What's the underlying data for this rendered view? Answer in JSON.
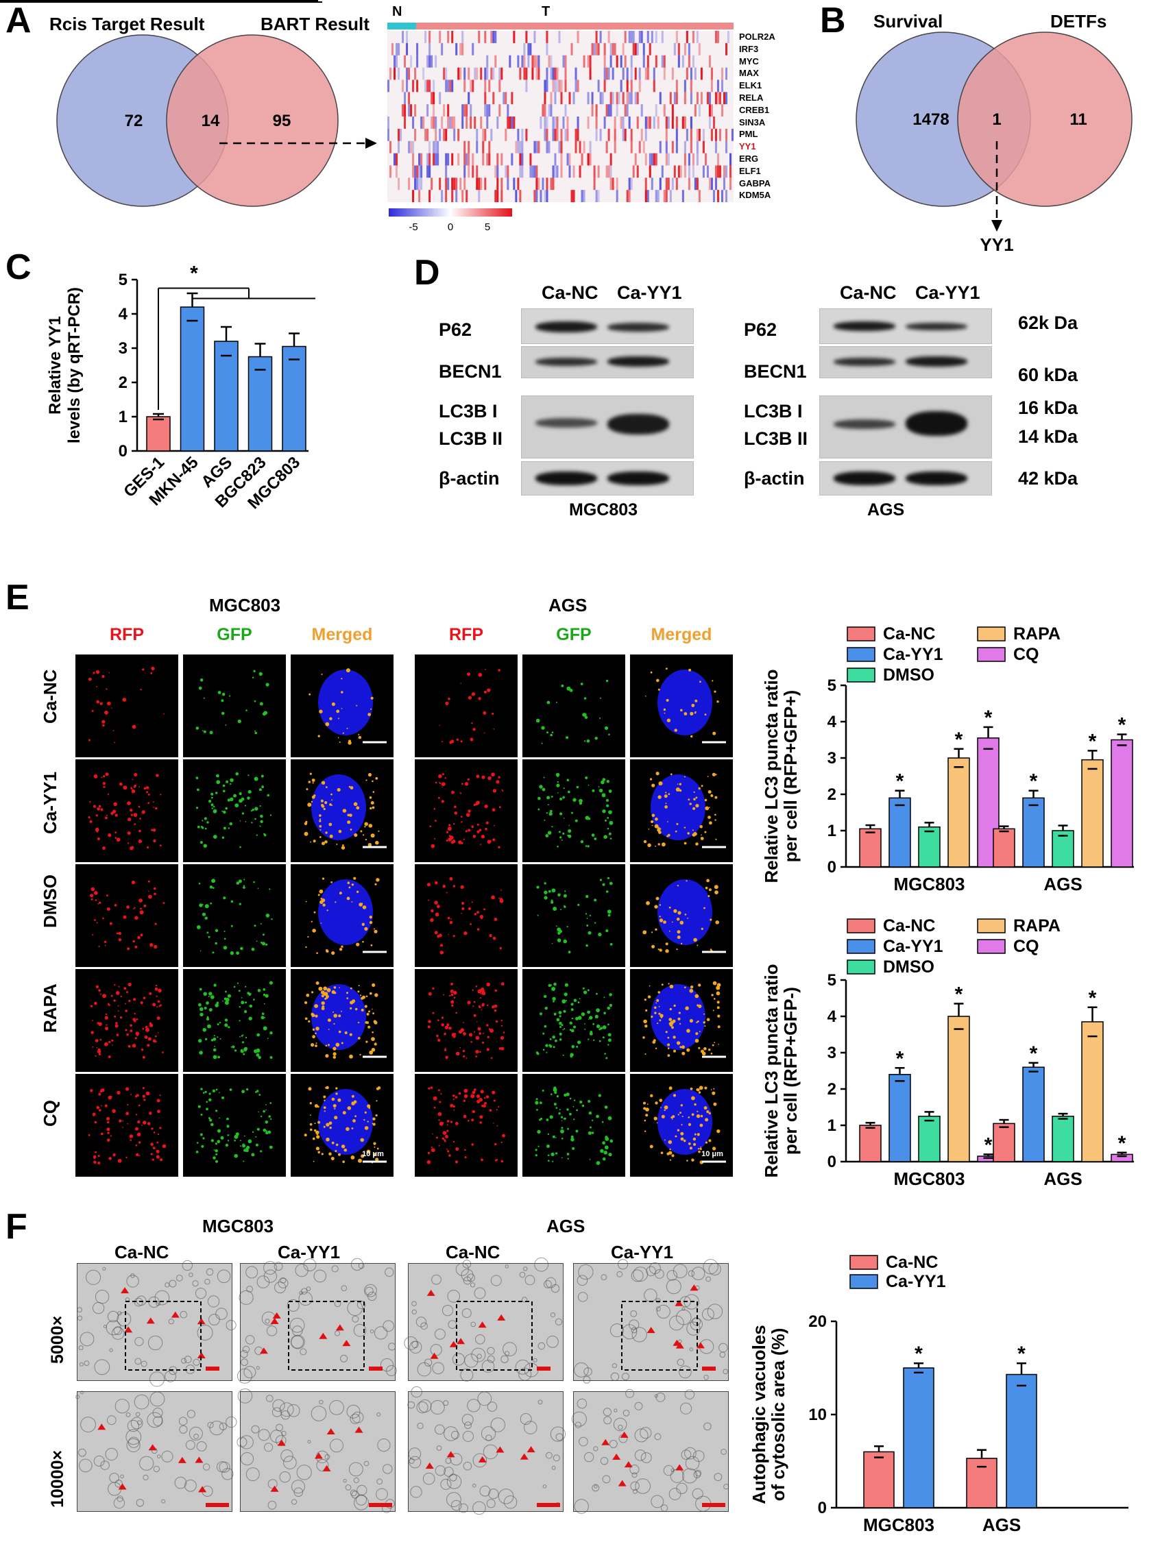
{
  "panels": {
    "A": "A",
    "B": "B",
    "C": "C",
    "D": "D",
    "E": "E",
    "F": "F"
  },
  "panelA": {
    "venn": {
      "left_title": "Rcis Target Result",
      "right_title": "BART Result",
      "left_only": "72",
      "overlap": "14",
      "right_only": "95"
    },
    "heatmap": {
      "group_n": "N",
      "group_t": "T",
      "genes": [
        "POLR2A",
        "IRF3",
        "MYC",
        "MAX",
        "ELK1",
        "RELA",
        "CREB1",
        "SIN3A",
        "PML",
        "YY1",
        "ERG",
        "ELF1",
        "GABPA",
        "KDM5A"
      ],
      "highlight_gene": "YY1",
      "scale_ticks": [
        "-5",
        "0",
        "5"
      ],
      "colors": {
        "low": "#2b2bd9",
        "high": "#e3121a",
        "n_bar": "#2ec5d3",
        "t_bar": "#f08a8a"
      }
    }
  },
  "panelB": {
    "left_title": "Survival",
    "right_title": "DETFs",
    "left_only": "1478",
    "overlap": "1",
    "right_only": "11",
    "result": "YY1"
  },
  "panelC": {
    "chart_data": {
      "type": "bar",
      "ylabel": "Relative YY1 levels (by qRT-PCR)",
      "ylim": [
        0,
        5
      ],
      "yticks": [
        "0",
        "1",
        "2",
        "3",
        "4",
        "5"
      ],
      "categories": [
        "GES-1",
        "MKN-45",
        "AGS",
        "BGC823",
        "MGC803"
      ],
      "values": [
        1.0,
        4.2,
        3.2,
        2.75,
        3.05
      ],
      "errors": [
        0.08,
        0.4,
        0.42,
        0.38,
        0.38
      ],
      "colors": [
        "#f47c7c",
        "#4a90e8",
        "#4a90e8",
        "#4a90e8",
        "#4a90e8"
      ],
      "significance": "*"
    }
  },
  "panelD": {
    "left": {
      "cols": [
        "Ca-NC",
        "Ca-YY1"
      ],
      "cell": "MGC803"
    },
    "right": {
      "cols": [
        "Ca-NC",
        "Ca-YY1"
      ],
      "cell": "AGS"
    },
    "proteins": {
      "p62": "P62",
      "becn1": "BECN1",
      "lc3b1": "LC3B I",
      "lc3b2": "LC3B II",
      "actin": "β-actin"
    },
    "sizes": {
      "p62": "62k Da",
      "becn1": "60 kDa",
      "lc3b1": "16 kDa",
      "lc3b2": "14 kDa",
      "actin": "42 kDa"
    }
  },
  "panelE": {
    "cell_lines": [
      "MGC803",
      "AGS"
    ],
    "channels": [
      "RFP",
      "GFP",
      "Merged"
    ],
    "rows": [
      "Ca-NC",
      "Ca-YY1",
      "DMSO",
      "RAPA",
      "CQ"
    ],
    "scale_label": "10 μm",
    "channel_colors": {
      "RFP": "#e8141c",
      "GFP": "#1aa81a",
      "Merged": "#f0a030"
    },
    "chart_top": {
      "chart_data": {
        "type": "bar",
        "ylabel": "Relative LC3 puncta ratio per cell (RFP+GFP+)",
        "ylim": [
          0,
          5
        ],
        "yticks": [
          "0",
          "1",
          "2",
          "3",
          "4",
          "5"
        ],
        "categories": [
          "MGC803",
          "AGS"
        ],
        "series": [
          {
            "name": "Ca-NC",
            "values": [
              1.05,
              1.05
            ],
            "errors": [
              0.1,
              0.07
            ],
            "color": "#f47c7c",
            "sig": [
              "",
              ""
            ]
          },
          {
            "name": "Ca-YY1",
            "values": [
              1.9,
              1.9
            ],
            "errors": [
              0.2,
              0.2
            ],
            "color": "#4a90e8",
            "sig": [
              "*",
              "*"
            ]
          },
          {
            "name": "DMSO",
            "values": [
              1.1,
              1.0
            ],
            "errors": [
              0.12,
              0.14
            ],
            "color": "#3fdca0",
            "sig": [
              "",
              ""
            ]
          },
          {
            "name": "RAPA",
            "values": [
              3.0,
              2.95
            ],
            "errors": [
              0.25,
              0.25
            ],
            "color": "#f8c278",
            "sig": [
              "*",
              "*"
            ]
          },
          {
            "name": "CQ",
            "values": [
              3.55,
              3.5
            ],
            "errors": [
              0.3,
              0.15
            ],
            "color": "#e07ae8",
            "sig": [
              "*",
              "*"
            ]
          }
        ]
      }
    },
    "chart_bottom": {
      "chart_data": {
        "type": "bar",
        "ylabel": "Relative LC3 puncta ratio per cell (RFP+GFP-)",
        "ylim": [
          0,
          5
        ],
        "yticks": [
          "0",
          "1",
          "2",
          "3",
          "4",
          "5"
        ],
        "categories": [
          "MGC803",
          "AGS"
        ],
        "series": [
          {
            "name": "Ca-NC",
            "values": [
              1.0,
              1.05
            ],
            "errors": [
              0.07,
              0.1
            ],
            "color": "#f47c7c",
            "sig": [
              "",
              ""
            ]
          },
          {
            "name": "Ca-YY1",
            "values": [
              2.4,
              2.6
            ],
            "errors": [
              0.18,
              0.12
            ],
            "color": "#4a90e8",
            "sig": [
              "*",
              "*"
            ]
          },
          {
            "name": "DMSO",
            "values": [
              1.25,
              1.25
            ],
            "errors": [
              0.12,
              0.07
            ],
            "color": "#3fdca0",
            "sig": [
              "",
              ""
            ]
          },
          {
            "name": "RAPA",
            "values": [
              4.0,
              3.85
            ],
            "errors": [
              0.35,
              0.4
            ],
            "color": "#f8c278",
            "sig": [
              "*",
              "*"
            ]
          },
          {
            "name": "CQ",
            "values": [
              0.15,
              0.2
            ],
            "errors": [
              0.05,
              0.05
            ],
            "color": "#e07ae8",
            "sig": [
              "*",
              "*"
            ]
          }
        ]
      }
    }
  },
  "panelF": {
    "cell_lines": [
      "MGC803",
      "AGS"
    ],
    "conditions": [
      "Ca-NC",
      "Ca-YY1",
      "Ca-NC",
      "Ca-YY1"
    ],
    "rows": [
      "5000×",
      "10000×"
    ],
    "chart_data": {
      "type": "bar",
      "ylabel": "Autophagic vacuoles of cytosolic area (%)",
      "ylim": [
        0,
        20
      ],
      "yticks": [
        "0",
        "10",
        "20"
      ],
      "categories": [
        "MGC803",
        "AGS"
      ],
      "series": [
        {
          "name": "Ca-NC",
          "values": [
            6.0,
            5.3
          ],
          "errors": [
            0.6,
            0.9
          ],
          "color": "#f47c7c",
          "sig": [
            "",
            ""
          ]
        },
        {
          "name": "Ca-YY1",
          "values": [
            15.0,
            14.3
          ],
          "errors": [
            0.5,
            1.2
          ],
          "color": "#4a90e8",
          "sig": [
            "*",
            "*"
          ]
        }
      ]
    }
  }
}
